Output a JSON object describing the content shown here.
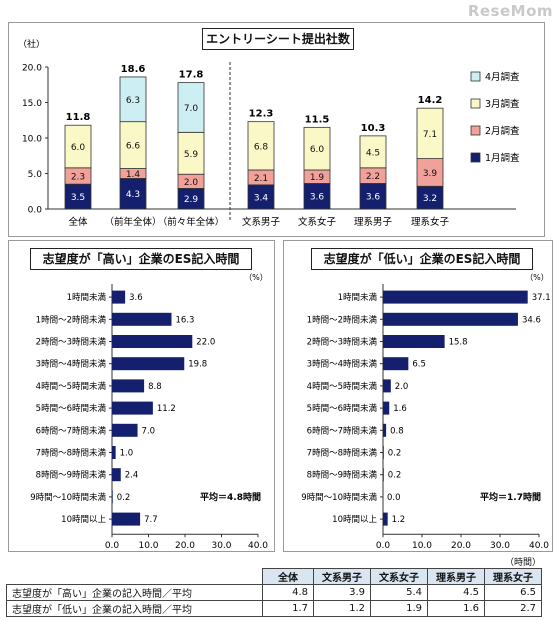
{
  "watermark": "ReseMom",
  "chart_data": [
    {
      "type": "bar",
      "stacked": true,
      "title": "エントリーシート提出社数",
      "ylabel": "（社）",
      "ylim": [
        0,
        20
      ],
      "yticks": [
        "0.0",
        "5.0",
        "10.0",
        "15.0",
        "20.0"
      ],
      "categories": [
        "全体",
        "（前年全体）",
        "（前々年全体）",
        "文系男子",
        "文系女子",
        "理系男子",
        "理系女子"
      ],
      "series": [
        {
          "name": "1月調査",
          "color": "#14206e",
          "values": [
            3.5,
            4.3,
            2.9,
            3.4,
            3.6,
            3.6,
            3.2
          ]
        },
        {
          "name": "2月調査",
          "color": "#f2a19a",
          "values": [
            2.3,
            1.4,
            2.0,
            2.1,
            1.9,
            2.2,
            3.9
          ]
        },
        {
          "name": "3月調査",
          "color": "#fbf8c8",
          "values": [
            6.0,
            6.6,
            5.9,
            6.8,
            6.0,
            4.5,
            7.1
          ]
        },
        {
          "name": "4月調査",
          "color": "#cdeef3",
          "values": [
            null,
            6.3,
            7.0,
            null,
            null,
            null,
            null
          ]
        }
      ],
      "totals": [
        "11.8",
        "18.6",
        "17.8",
        "12.3",
        "11.5",
        "10.3",
        "14.2"
      ],
      "legend_position": "right",
      "grid": false
    },
    {
      "type": "bar",
      "orientation": "horizontal",
      "title": "志望度が「高い」企業のES記入時間",
      "unit": "（%）",
      "xlim": [
        0,
        40
      ],
      "xticks": [
        "0.0",
        "10.0",
        "20.0",
        "30.0",
        "40.0"
      ],
      "color": "#14206e",
      "categories": [
        "1時間未満",
        "1時間～2時間未満",
        "2時間～3時間未満",
        "3時間～4時間未満",
        "4時間～5時間未満",
        "5時間～6時間未満",
        "6時間～7時間未満",
        "7時間～8時間未満",
        "8時間～9時間未満",
        "9時間～10時間未満",
        "10時間以上"
      ],
      "values": [
        3.6,
        16.3,
        22.0,
        19.8,
        8.8,
        11.2,
        7.0,
        1.0,
        2.4,
        0.2,
        7.7
      ],
      "annotation": "平均＝4.8時間"
    },
    {
      "type": "bar",
      "orientation": "horizontal",
      "title": "志望度が「低い」企業のES記入時間",
      "unit": "（%）",
      "xlim": [
        0,
        40
      ],
      "xticks": [
        "0.0",
        "10.0",
        "20.0",
        "30.0",
        "40.0"
      ],
      "color": "#14206e",
      "categories": [
        "1時間未満",
        "1時間～2時間未満",
        "2時間～3時間未満",
        "3時間～4時間未満",
        "4時間～5時間未満",
        "5時間～6時間未満",
        "6時間～7時間未満",
        "7時間～8時間未満",
        "8時間～9時間未満",
        "9時間～10時間未満",
        "10時間以上"
      ],
      "values": [
        37.1,
        34.6,
        15.8,
        6.5,
        2.0,
        1.6,
        0.8,
        0.2,
        0.2,
        0.0,
        1.2
      ],
      "annotation": "平均＝1.7時間"
    },
    {
      "type": "table",
      "unit": "（時間）",
      "columns": [
        "",
        "全体",
        "文系男子",
        "文系女子",
        "理系男子",
        "理系女子"
      ],
      "rows": [
        {
          "label": "志望度が「高い」企業の記入時間／平均",
          "values": [
            "4.8",
            "3.9",
            "5.4",
            "4.5",
            "6.5"
          ]
        },
        {
          "label": "志望度が「低い」企業の記入時間／平均",
          "values": [
            "1.7",
            "1.2",
            "1.9",
            "1.6",
            "2.7"
          ]
        }
      ]
    }
  ]
}
